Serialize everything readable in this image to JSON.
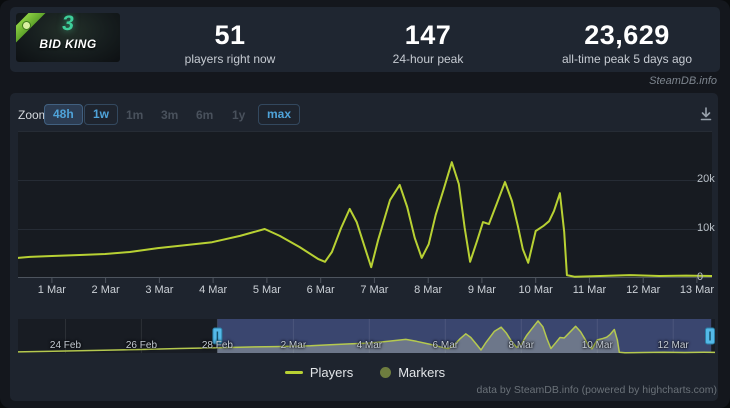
{
  "header": {
    "banner": {
      "title": "BID KING",
      "logo_number": "3"
    },
    "stats": [
      {
        "value": "51",
        "label": "players right now"
      },
      {
        "value": "147",
        "label": "24-hour peak"
      },
      {
        "value": "23,629",
        "label": "all-time peak 5 days ago"
      }
    ],
    "watermark": "SteamDB.info"
  },
  "toolbar": {
    "zoom_label": "Zoom",
    "buttons": [
      {
        "label": "48h",
        "state": "active"
      },
      {
        "label": "1w",
        "state": "enabled"
      },
      {
        "label": "1m",
        "state": "disabled"
      },
      {
        "label": "3m",
        "state": "disabled"
      },
      {
        "label": "6m",
        "state": "disabled"
      },
      {
        "label": "1y",
        "state": "disabled"
      },
      {
        "label": "max",
        "state": "enabled"
      }
    ]
  },
  "legend": {
    "items": [
      {
        "name": "Players",
        "marker": "line",
        "color": "#b8d133"
      },
      {
        "name": "Markers",
        "marker": "circle",
        "color": "#6e7d3f"
      }
    ]
  },
  "footer": {
    "credit": "data by SteamDB.info (powered by highcharts.com)"
  },
  "colors": {
    "accent_line": "#b8d133",
    "plot_bg": "#171b21",
    "grid": "#262c35",
    "axis": "#4d545e",
    "nav_bg": "#181c23",
    "nav_selected_fill": "rgba(100,122,204,0.45)",
    "nav_gridline": "rgba(255,255,255,0.09)",
    "nav_area_fill": "rgba(205,212,190,0.35)",
    "nav_line": "#b5c94f",
    "nav_handle": "#54b9e8",
    "button_text": "#4fa3d9",
    "banner_logo_green": "#3ecf9a",
    "ribbon_green": "#73b82d"
  },
  "chart_data": {
    "type": "line",
    "title": "",
    "series_name": "Players",
    "x_unit": "days (1 = 1 Mar, 0 = 28 Feb)",
    "y_unit": "concurrent players",
    "main": {
      "xlim": [
        0.37,
        13.28
      ],
      "ylim": [
        0,
        30000
      ],
      "grid_values": [
        10000,
        20000,
        30000
      ],
      "yticks": [
        {
          "value": 0,
          "label": "0"
        },
        {
          "value": 10000,
          "label": "10k"
        },
        {
          "value": 20000,
          "label": "20k"
        }
      ],
      "xticks": [
        {
          "day": 1,
          "label": "1 Mar"
        },
        {
          "day": 2,
          "label": "2 Mar"
        },
        {
          "day": 3,
          "label": "3 Mar"
        },
        {
          "day": 4,
          "label": "4 Mar"
        },
        {
          "day": 5,
          "label": "5 Mar"
        },
        {
          "day": 6,
          "label": "6 Mar"
        },
        {
          "day": 7,
          "label": "7 Mar"
        },
        {
          "day": 8,
          "label": "8 Mar"
        },
        {
          "day": 9,
          "label": "9 Mar"
        },
        {
          "day": 10,
          "label": "10 Mar"
        },
        {
          "day": 11,
          "label": "11 Mar"
        },
        {
          "day": 12,
          "label": "12 Mar"
        },
        {
          "day": 13,
          "label": "13 Mar"
        }
      ],
      "points": [
        [
          0.37,
          4100
        ],
        [
          0.59,
          4300
        ],
        [
          1.0,
          4500
        ],
        [
          1.52,
          4700
        ],
        [
          1.99,
          4900
        ],
        [
          2.45,
          5300
        ],
        [
          2.97,
          6100
        ],
        [
          3.47,
          6700
        ],
        [
          3.98,
          7300
        ],
        [
          4.5,
          8600
        ],
        [
          4.96,
          10000
        ],
        [
          5.24,
          8600
        ],
        [
          5.61,
          6300
        ],
        [
          5.95,
          3900
        ],
        [
          6.08,
          3300
        ],
        [
          6.21,
          5300
        ],
        [
          6.38,
          10200
        ],
        [
          6.54,
          14100
        ],
        [
          6.67,
          11400
        ],
        [
          6.82,
          6300
        ],
        [
          6.94,
          2200
        ],
        [
          7.07,
          7800
        ],
        [
          7.29,
          15900
        ],
        [
          7.47,
          19000
        ],
        [
          7.61,
          14500
        ],
        [
          7.75,
          8200
        ],
        [
          7.88,
          4100
        ],
        [
          8.01,
          6900
        ],
        [
          8.14,
          12900
        ],
        [
          8.29,
          18200
        ],
        [
          8.44,
          23629
        ],
        [
          8.57,
          19200
        ],
        [
          8.68,
          10200
        ],
        [
          8.78,
          3300
        ],
        [
          8.91,
          7600
        ],
        [
          9.02,
          11400
        ],
        [
          9.13,
          11000
        ],
        [
          9.28,
          15300
        ],
        [
          9.43,
          19600
        ],
        [
          9.56,
          15700
        ],
        [
          9.67,
          10600
        ],
        [
          9.76,
          5900
        ],
        [
          9.86,
          3100
        ],
        [
          10.0,
          9600
        ],
        [
          10.14,
          10600
        ],
        [
          10.25,
          11600
        ],
        [
          10.34,
          13700
        ],
        [
          10.45,
          17300
        ],
        [
          10.53,
          9400
        ],
        [
          10.58,
          600
        ],
        [
          10.73,
          250
        ],
        [
          11.2,
          400
        ],
        [
          11.75,
          600
        ],
        [
          12.3,
          400
        ],
        [
          12.8,
          500
        ],
        [
          13.28,
          400
        ]
      ]
    },
    "navigator": {
      "xlim": [
        -5.25,
        13.1
      ],
      "ylim": [
        0,
        25000
      ],
      "selected": [
        0,
        13.0
      ],
      "labels": [
        {
          "day": -4,
          "label": "24 Feb"
        },
        {
          "day": -2,
          "label": "26 Feb"
        },
        {
          "day": 0,
          "label": "28 Feb"
        },
        {
          "day": 2,
          "label": "2 Mar"
        },
        {
          "day": 4,
          "label": "4 Mar"
        },
        {
          "day": 6,
          "label": "6 Mar"
        },
        {
          "day": 8,
          "label": "8 Mar"
        },
        {
          "day": 10,
          "label": "10 Mar"
        },
        {
          "day": 12,
          "label": "12 Mar"
        }
      ],
      "pre_points": [
        [
          -5.25,
          800
        ],
        [
          -4.5,
          1200
        ],
        [
          -4,
          1500
        ],
        [
          -3,
          2000
        ],
        [
          -2,
          2600
        ],
        [
          -1,
          3300
        ],
        [
          0,
          3900
        ]
      ]
    }
  }
}
